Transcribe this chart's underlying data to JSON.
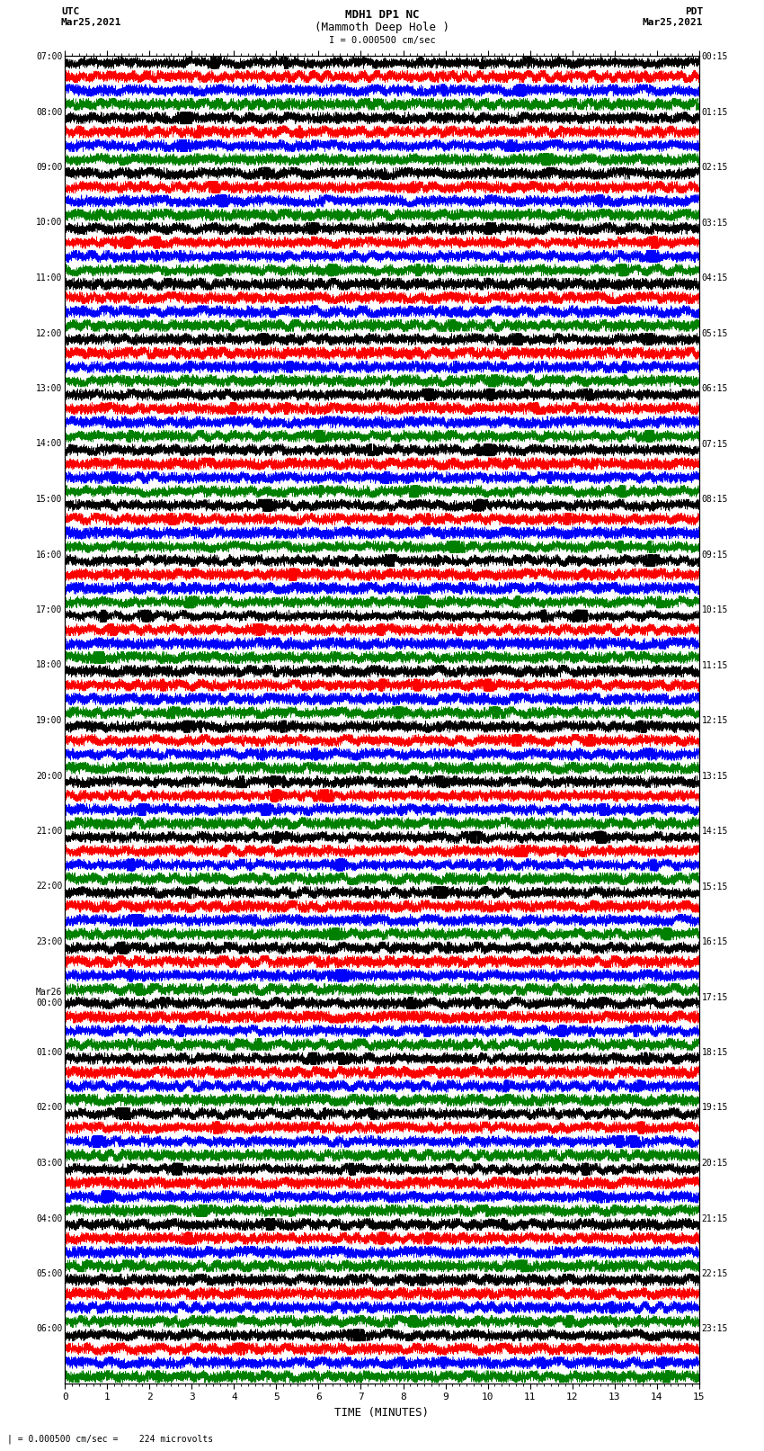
{
  "title_line1": "MDH1 DP1 NC",
  "title_line2": "(Mammoth Deep Hole )",
  "title_line3": "I = 0.000500 cm/sec",
  "left_label_top": "UTC",
  "left_label_date": "Mar25,2021",
  "right_label_top": "PDT",
  "right_label_date": "Mar25,2021",
  "bottom_note": "| = 0.000500 cm/sec =    224 microvolts",
  "xlabel": "TIME (MINUTES)",
  "xmin": 0,
  "xmax": 15,
  "trace_colors": [
    "black",
    "red",
    "blue",
    "green"
  ],
  "num_hour_rows": 24,
  "traces_per_row": 4,
  "background_color": "white",
  "utc_times": [
    "07:00",
    "08:00",
    "09:00",
    "10:00",
    "11:00",
    "12:00",
    "13:00",
    "14:00",
    "15:00",
    "16:00",
    "17:00",
    "18:00",
    "19:00",
    "20:00",
    "21:00",
    "22:00",
    "23:00",
    "Mar26\n00:00",
    "01:00",
    "02:00",
    "03:00",
    "04:00",
    "05:00",
    "06:00"
  ],
  "pdt_times": [
    "00:15",
    "01:15",
    "02:15",
    "03:15",
    "04:15",
    "05:15",
    "06:15",
    "07:15",
    "08:15",
    "09:15",
    "10:15",
    "11:15",
    "12:15",
    "13:15",
    "14:15",
    "15:15",
    "16:15",
    "17:15",
    "18:15",
    "19:15",
    "20:15",
    "21:15",
    "22:15",
    "23:15"
  ],
  "fig_width": 8.5,
  "fig_height": 16.13,
  "dpi": 100
}
